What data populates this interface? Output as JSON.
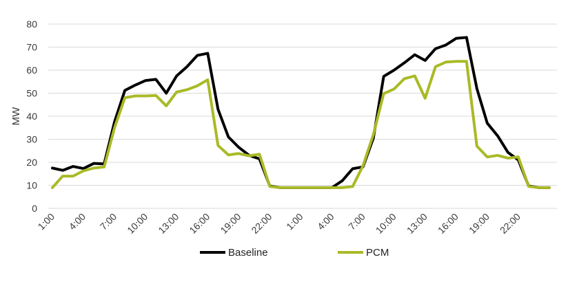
{
  "chart_data": {
    "type": "line",
    "title": "",
    "xlabel": "",
    "ylabel": "MW",
    "ylim": [
      0,
      80
    ],
    "yticks": [
      "0",
      "10",
      "20",
      "30",
      "40",
      "50",
      "60",
      "70",
      "80"
    ],
    "xtick_labels": [
      "1:00",
      "4:00",
      "7:00",
      "10:00",
      "13:00",
      "16:00",
      "19:00",
      "22:00",
      "1:00",
      "4:00",
      "7:00",
      "10:00",
      "13:00",
      "16:00",
      "19:00",
      "22:00"
    ],
    "grid": true,
    "legend_position": "bottom",
    "series": [
      {
        "name": "Baseline",
        "color": "#000000",
        "values": [
          17.5,
          16.5,
          18.2,
          17.3,
          19.5,
          19.3,
          37.5,
          51.2,
          53.5,
          55.5,
          56.0,
          50.0,
          57.5,
          61.5,
          66.4,
          67.3,
          43.0,
          31.0,
          26.5,
          23.0,
          21.5,
          9.7,
          9.0,
          9.0,
          9.0,
          9.0,
          9.0,
          9.0,
          12.0,
          17.2,
          18.0,
          30.5,
          57.3,
          60.0,
          63.2,
          66.7,
          64.2,
          69.3,
          70.9,
          73.8,
          74.2,
          52.0,
          37.0,
          31.5,
          24.3,
          21.0,
          9.7,
          9.0,
          9.0
        ],
        "values_note": ""
      },
      {
        "name": "PCM",
        "color": "#a9ba26",
        "values": [
          9.0,
          14.0,
          14.0,
          16.3,
          17.5,
          18.0,
          35.0,
          48.0,
          48.8,
          48.8,
          49.0,
          44.5,
          50.5,
          51.5,
          53.2,
          55.8,
          27.3,
          23.2,
          23.8,
          22.8,
          23.5,
          9.5,
          9.0,
          9.0,
          9.0,
          9.0,
          9.0,
          9.0,
          9.0,
          9.5,
          18.5,
          32.0,
          49.8,
          51.8,
          56.3,
          57.5,
          47.8,
          61.5,
          63.5,
          63.8,
          63.8,
          27.0,
          22.3,
          23.0,
          21.8,
          22.3,
          9.5,
          9.0,
          9.0
        ]
      }
    ]
  }
}
